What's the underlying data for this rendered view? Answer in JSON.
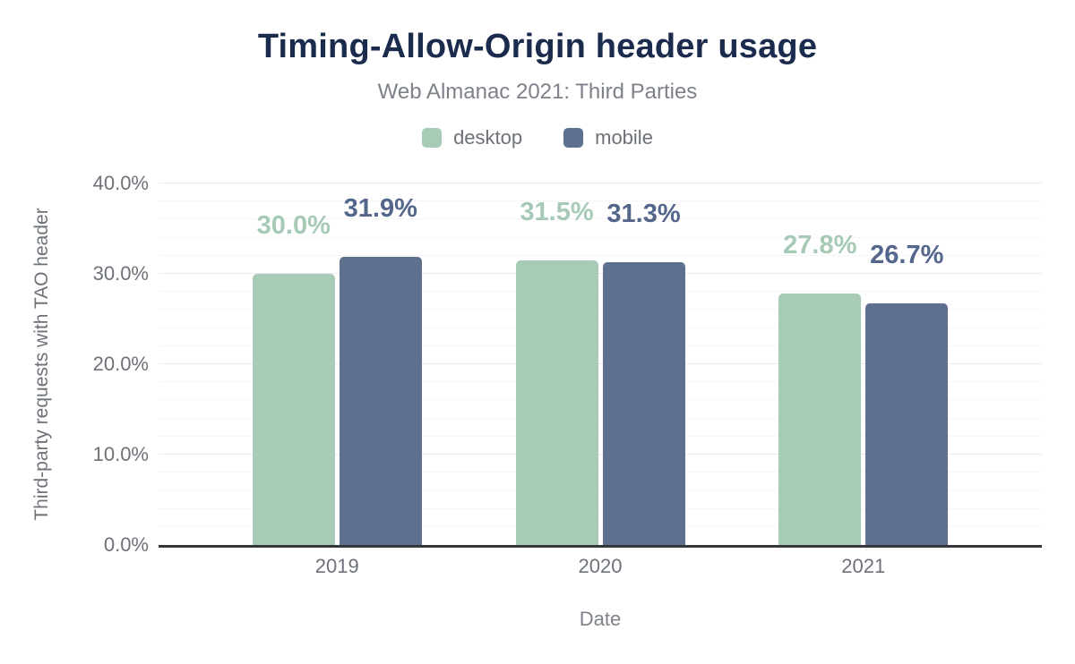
{
  "chart_data": {
    "type": "bar",
    "title": "Timing-Allow-Origin header usage",
    "subtitle": "Web Almanac 2021: Third Parties",
    "xlabel": "Date",
    "ylabel": "Third-party requests with TAO header",
    "categories": [
      "2019",
      "2020",
      "2021"
    ],
    "series": [
      {
        "name": "desktop",
        "color": "#a7cbb7",
        "label_color": "#a6cab6",
        "values": [
          30.0,
          31.5,
          27.8
        ],
        "labels": [
          "30.0%",
          "31.5%",
          "27.8%"
        ]
      },
      {
        "name": "mobile",
        "color": "#5e708e",
        "label_color": "#54668b",
        "values": [
          31.9,
          31.3,
          26.7
        ],
        "labels": [
          "31.9%",
          "31.3%",
          "26.7%"
        ]
      }
    ],
    "ylim": [
      0,
      40
    ],
    "yticks": [
      {
        "value": 0,
        "label": "0.0%"
      },
      {
        "value": 10,
        "label": "10.0%"
      },
      {
        "value": 20,
        "label": "20.0%"
      },
      {
        "value": 30,
        "label": "30.0%"
      },
      {
        "value": 40,
        "label": "40.0%"
      }
    ],
    "minor_grid_step": 2,
    "grid": true,
    "legend_position": "top"
  },
  "colors": {
    "background": "#ffffff",
    "title": "#1b2b4d",
    "subtitle": "#7d8189",
    "axis_text": "#6d7178",
    "axis_line": "#36373c",
    "grid_major": "#ebebed",
    "grid_minor": "#f6f6f8"
  }
}
